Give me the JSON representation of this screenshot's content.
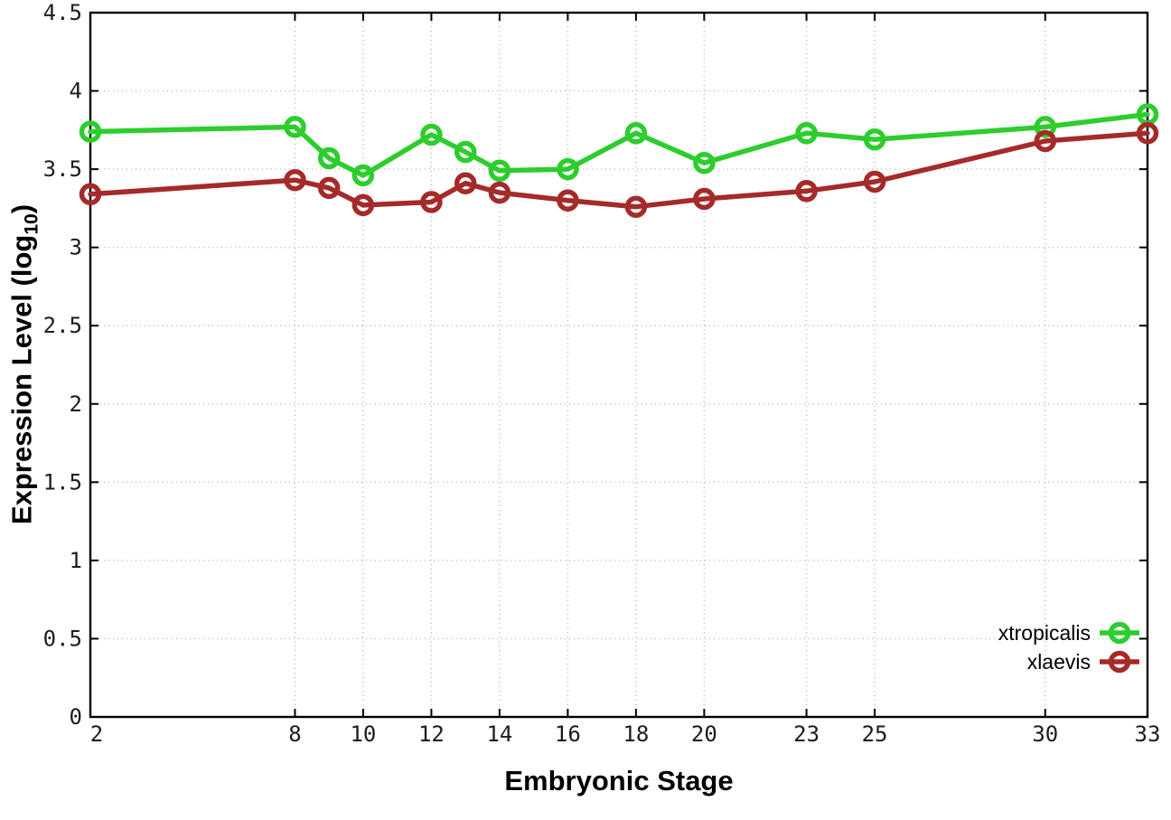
{
  "chart_data": {
    "type": "line",
    "title": "",
    "xlabel": "Embryonic Stage",
    "ylabel": "Expression Level (log10)",
    "ylabel_parts": {
      "prefix": "Expression Level (log",
      "sub": "10",
      "suffix": ")"
    },
    "x": [
      2,
      8,
      9,
      10,
      12,
      13,
      14,
      16,
      18,
      20,
      23,
      25,
      30,
      33
    ],
    "xticks": [
      2,
      8,
      10,
      12,
      14,
      16,
      18,
      20,
      23,
      25,
      30,
      33
    ],
    "yticks": [
      0,
      0.5,
      1,
      1.5,
      2,
      2.5,
      3,
      3.5,
      4,
      4.5
    ],
    "xlim": [
      2,
      33
    ],
    "ylim": [
      0,
      4.5
    ],
    "grid": true,
    "grid_style": "dotted",
    "legend_position": "bottom-right-inside",
    "series": [
      {
        "name": "xtropicalis",
        "color": "#2dcd2d",
        "marker": "open-circle",
        "values": [
          3.74,
          3.77,
          3.57,
          3.46,
          3.72,
          3.61,
          3.49,
          3.5,
          3.73,
          3.54,
          3.73,
          3.69,
          3.77,
          3.85
        ]
      },
      {
        "name": "xlaevis",
        "color": "#a52a2a",
        "marker": "open-circle",
        "values": [
          3.34,
          3.43,
          3.38,
          3.27,
          3.29,
          3.41,
          3.35,
          3.3,
          3.26,
          3.31,
          3.36,
          3.42,
          3.68,
          3.73
        ]
      }
    ]
  }
}
